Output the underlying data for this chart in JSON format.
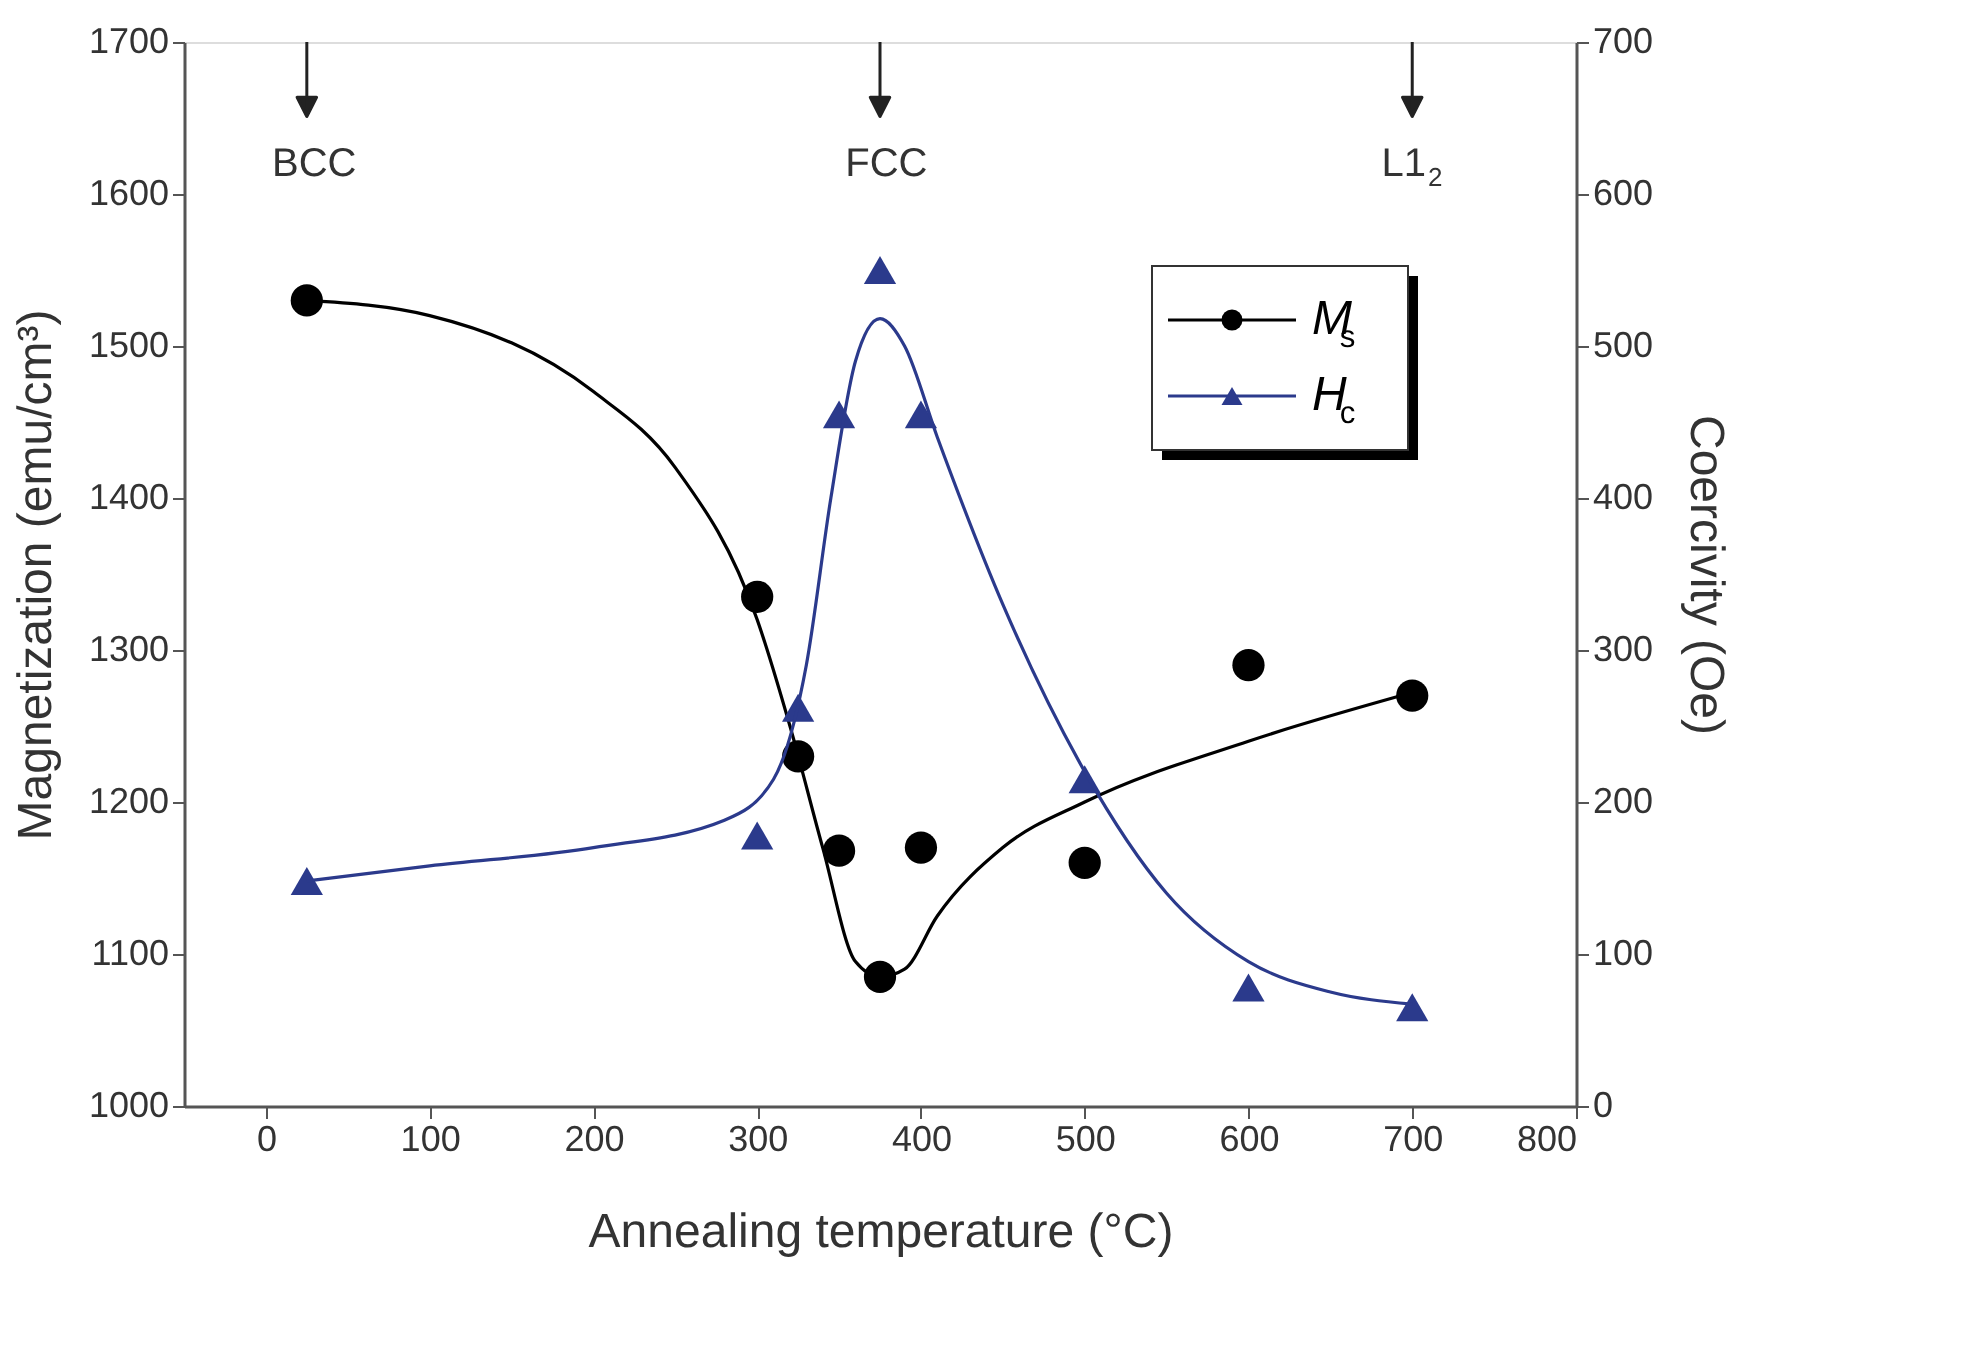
{
  "chart_data": {
    "type": "scatter",
    "xlabel": "Annealing temperature (°C)",
    "ylabel": "Magnetization (emu/cm³)",
    "y2label": "Coercivity (Oe)",
    "xlim": [
      -50,
      800
    ],
    "xticks": [
      0,
      100,
      200,
      300,
      400,
      500,
      600,
      700,
      800
    ],
    "ylim": [
      1000,
      1700
    ],
    "yticks": [
      1000,
      1100,
      1200,
      1300,
      1400,
      1500,
      1600,
      1700
    ],
    "y2lim": [
      0,
      700
    ],
    "y2ticks": [
      0,
      100,
      200,
      300,
      400,
      500,
      600,
      700
    ],
    "grid": false,
    "legend": "top right",
    "ref_lines": [
      {
        "axis": "x",
        "value": 25,
        "label": "BCC"
      },
      {
        "axis": "x",
        "value": 375,
        "label": "FCC"
      },
      {
        "axis": "x",
        "value": 700,
        "label": "L1$_{2}$"
      }
    ],
    "series": [
      {
        "name": "M$_{s}$",
        "marker": "circle",
        "color": "#000000",
        "x": [
          25,
          300,
          325,
          350,
          375,
          400,
          500,
          600,
          700
        ],
        "values": [
          1530,
          1335,
          1230,
          1168,
          1085,
          1170,
          1160,
          1290,
          1270
        ]
      },
      {
        "type": "line",
        "marker": "none",
        "color": "#000000",
        "x": [
          25,
          100,
          200,
          250,
          300,
          320,
          340,
          360,
          375,
          390,
          410,
          450,
          500,
          600,
          700
        ],
        "values": [
          1530,
          1520,
          1470,
          1420,
          1320,
          1250,
          1170,
          1095,
          1085,
          1090,
          1125,
          1170,
          1200,
          1240,
          1272
        ]
      },
      {
        "name": "H$_{c}$",
        "axis": "y2",
        "marker": "triangle",
        "color": "#2b3a8c",
        "x": [
          25,
          300,
          325,
          350,
          375,
          400,
          500,
          600,
          700
        ],
        "values": [
          148,
          178,
          262,
          455,
          550,
          455,
          215,
          78,
          65
        ]
      },
      {
        "type": "line",
        "axis": "y2",
        "marker": "none",
        "color": "#2b3a8c",
        "x": [
          25,
          100,
          200,
          280,
          310,
          330,
          345,
          360,
          375,
          390,
          410,
          450,
          500,
          550,
          600,
          650,
          700
        ],
        "values": [
          148,
          158,
          170,
          188,
          215,
          290,
          400,
          490,
          518,
          500,
          440,
          330,
          220,
          140,
          95,
          75,
          67
        ]
      }
    ]
  }
}
